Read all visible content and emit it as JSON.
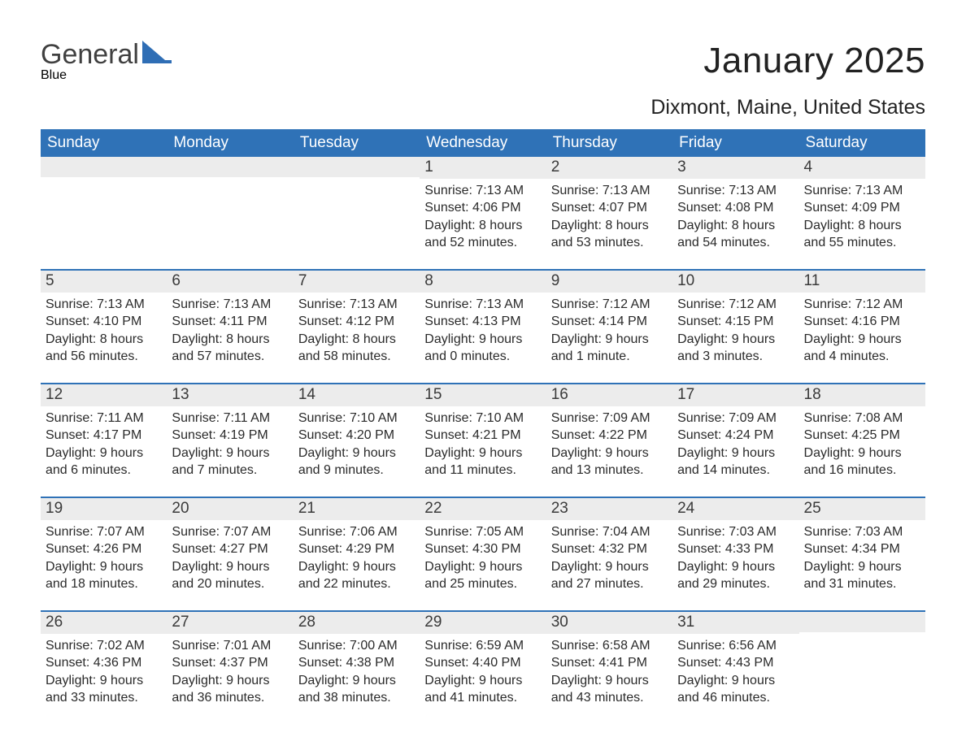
{
  "logo": {
    "text_main": "General",
    "text_sub": "Blue",
    "main_color": "#404040",
    "accent_color": "#2f6eb5"
  },
  "header": {
    "title": "January 2025",
    "subtitle": "Dixmont, Maine, United States"
  },
  "calendar": {
    "header_bg": "#2f72b7",
    "header_fg": "#ffffff",
    "row_border_color": "#2f72b7",
    "daynum_bg": "#ececec",
    "daynum_fg": "#3a3a3a",
    "body_fg": "#2a2a2a",
    "day_names": [
      "Sunday",
      "Monday",
      "Tuesday",
      "Wednesday",
      "Thursday",
      "Friday",
      "Saturday"
    ],
    "weeks": [
      [
        {
          "day": "",
          "sunrise": "",
          "sunset": "",
          "daylight": ""
        },
        {
          "day": "",
          "sunrise": "",
          "sunset": "",
          "daylight": ""
        },
        {
          "day": "",
          "sunrise": "",
          "sunset": "",
          "daylight": ""
        },
        {
          "day": "1",
          "sunrise": "Sunrise: 7:13 AM",
          "sunset": "Sunset: 4:06 PM",
          "daylight": "Daylight: 8 hours and 52 minutes."
        },
        {
          "day": "2",
          "sunrise": "Sunrise: 7:13 AM",
          "sunset": "Sunset: 4:07 PM",
          "daylight": "Daylight: 8 hours and 53 minutes."
        },
        {
          "day": "3",
          "sunrise": "Sunrise: 7:13 AM",
          "sunset": "Sunset: 4:08 PM",
          "daylight": "Daylight: 8 hours and 54 minutes."
        },
        {
          "day": "4",
          "sunrise": "Sunrise: 7:13 AM",
          "sunset": "Sunset: 4:09 PM",
          "daylight": "Daylight: 8 hours and 55 minutes."
        }
      ],
      [
        {
          "day": "5",
          "sunrise": "Sunrise: 7:13 AM",
          "sunset": "Sunset: 4:10 PM",
          "daylight": "Daylight: 8 hours and 56 minutes."
        },
        {
          "day": "6",
          "sunrise": "Sunrise: 7:13 AM",
          "sunset": "Sunset: 4:11 PM",
          "daylight": "Daylight: 8 hours and 57 minutes."
        },
        {
          "day": "7",
          "sunrise": "Sunrise: 7:13 AM",
          "sunset": "Sunset: 4:12 PM",
          "daylight": "Daylight: 8 hours and 58 minutes."
        },
        {
          "day": "8",
          "sunrise": "Sunrise: 7:13 AM",
          "sunset": "Sunset: 4:13 PM",
          "daylight": "Daylight: 9 hours and 0 minutes."
        },
        {
          "day": "9",
          "sunrise": "Sunrise: 7:12 AM",
          "sunset": "Sunset: 4:14 PM",
          "daylight": "Daylight: 9 hours and 1 minute."
        },
        {
          "day": "10",
          "sunrise": "Sunrise: 7:12 AM",
          "sunset": "Sunset: 4:15 PM",
          "daylight": "Daylight: 9 hours and 3 minutes."
        },
        {
          "day": "11",
          "sunrise": "Sunrise: 7:12 AM",
          "sunset": "Sunset: 4:16 PM",
          "daylight": "Daylight: 9 hours and 4 minutes."
        }
      ],
      [
        {
          "day": "12",
          "sunrise": "Sunrise: 7:11 AM",
          "sunset": "Sunset: 4:17 PM",
          "daylight": "Daylight: 9 hours and 6 minutes."
        },
        {
          "day": "13",
          "sunrise": "Sunrise: 7:11 AM",
          "sunset": "Sunset: 4:19 PM",
          "daylight": "Daylight: 9 hours and 7 minutes."
        },
        {
          "day": "14",
          "sunrise": "Sunrise: 7:10 AM",
          "sunset": "Sunset: 4:20 PM",
          "daylight": "Daylight: 9 hours and 9 minutes."
        },
        {
          "day": "15",
          "sunrise": "Sunrise: 7:10 AM",
          "sunset": "Sunset: 4:21 PM",
          "daylight": "Daylight: 9 hours and 11 minutes."
        },
        {
          "day": "16",
          "sunrise": "Sunrise: 7:09 AM",
          "sunset": "Sunset: 4:22 PM",
          "daylight": "Daylight: 9 hours and 13 minutes."
        },
        {
          "day": "17",
          "sunrise": "Sunrise: 7:09 AM",
          "sunset": "Sunset: 4:24 PM",
          "daylight": "Daylight: 9 hours and 14 minutes."
        },
        {
          "day": "18",
          "sunrise": "Sunrise: 7:08 AM",
          "sunset": "Sunset: 4:25 PM",
          "daylight": "Daylight: 9 hours and 16 minutes."
        }
      ],
      [
        {
          "day": "19",
          "sunrise": "Sunrise: 7:07 AM",
          "sunset": "Sunset: 4:26 PM",
          "daylight": "Daylight: 9 hours and 18 minutes."
        },
        {
          "day": "20",
          "sunrise": "Sunrise: 7:07 AM",
          "sunset": "Sunset: 4:27 PM",
          "daylight": "Daylight: 9 hours and 20 minutes."
        },
        {
          "day": "21",
          "sunrise": "Sunrise: 7:06 AM",
          "sunset": "Sunset: 4:29 PM",
          "daylight": "Daylight: 9 hours and 22 minutes."
        },
        {
          "day": "22",
          "sunrise": "Sunrise: 7:05 AM",
          "sunset": "Sunset: 4:30 PM",
          "daylight": "Daylight: 9 hours and 25 minutes."
        },
        {
          "day": "23",
          "sunrise": "Sunrise: 7:04 AM",
          "sunset": "Sunset: 4:32 PM",
          "daylight": "Daylight: 9 hours and 27 minutes."
        },
        {
          "day": "24",
          "sunrise": "Sunrise: 7:03 AM",
          "sunset": "Sunset: 4:33 PM",
          "daylight": "Daylight: 9 hours and 29 minutes."
        },
        {
          "day": "25",
          "sunrise": "Sunrise: 7:03 AM",
          "sunset": "Sunset: 4:34 PM",
          "daylight": "Daylight: 9 hours and 31 minutes."
        }
      ],
      [
        {
          "day": "26",
          "sunrise": "Sunrise: 7:02 AM",
          "sunset": "Sunset: 4:36 PM",
          "daylight": "Daylight: 9 hours and 33 minutes."
        },
        {
          "day": "27",
          "sunrise": "Sunrise: 7:01 AM",
          "sunset": "Sunset: 4:37 PM",
          "daylight": "Daylight: 9 hours and 36 minutes."
        },
        {
          "day": "28",
          "sunrise": "Sunrise: 7:00 AM",
          "sunset": "Sunset: 4:38 PM",
          "daylight": "Daylight: 9 hours and 38 minutes."
        },
        {
          "day": "29",
          "sunrise": "Sunrise: 6:59 AM",
          "sunset": "Sunset: 4:40 PM",
          "daylight": "Daylight: 9 hours and 41 minutes."
        },
        {
          "day": "30",
          "sunrise": "Sunrise: 6:58 AM",
          "sunset": "Sunset: 4:41 PM",
          "daylight": "Daylight: 9 hours and 43 minutes."
        },
        {
          "day": "31",
          "sunrise": "Sunrise: 6:56 AM",
          "sunset": "Sunset: 4:43 PM",
          "daylight": "Daylight: 9 hours and 46 minutes."
        },
        {
          "day": "",
          "sunrise": "",
          "sunset": "",
          "daylight": ""
        }
      ]
    ]
  }
}
